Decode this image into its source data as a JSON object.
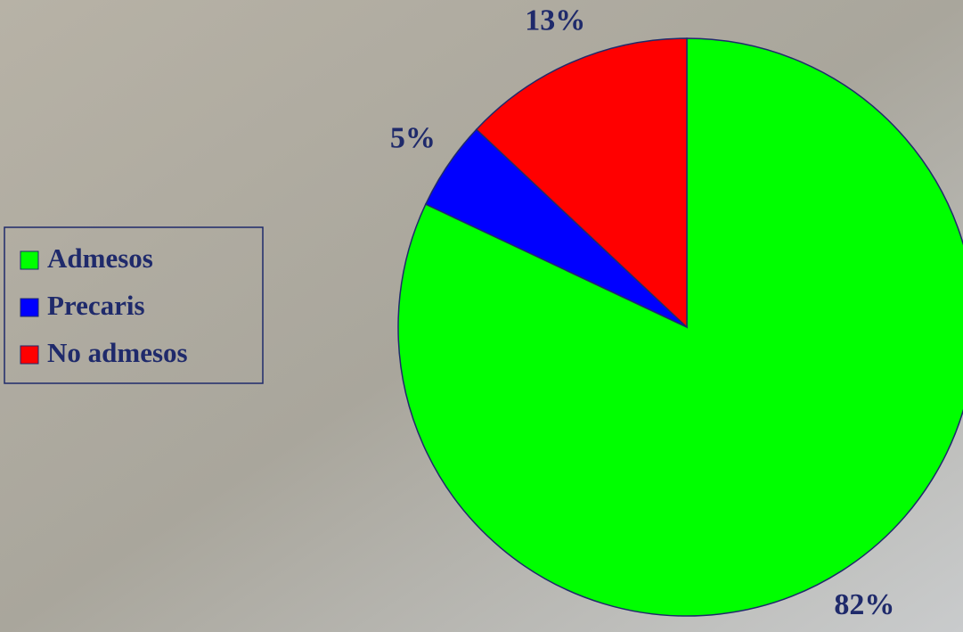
{
  "chart_data": {
    "type": "pie",
    "categories": [
      "Admesos",
      "Precaris",
      "No admesos"
    ],
    "values": [
      82,
      5,
      13
    ],
    "value_labels": [
      "82%",
      "5%",
      "13%"
    ],
    "colors": [
      "#00ff00",
      "#0000ff",
      "#ff0000"
    ],
    "legend": "left"
  }
}
